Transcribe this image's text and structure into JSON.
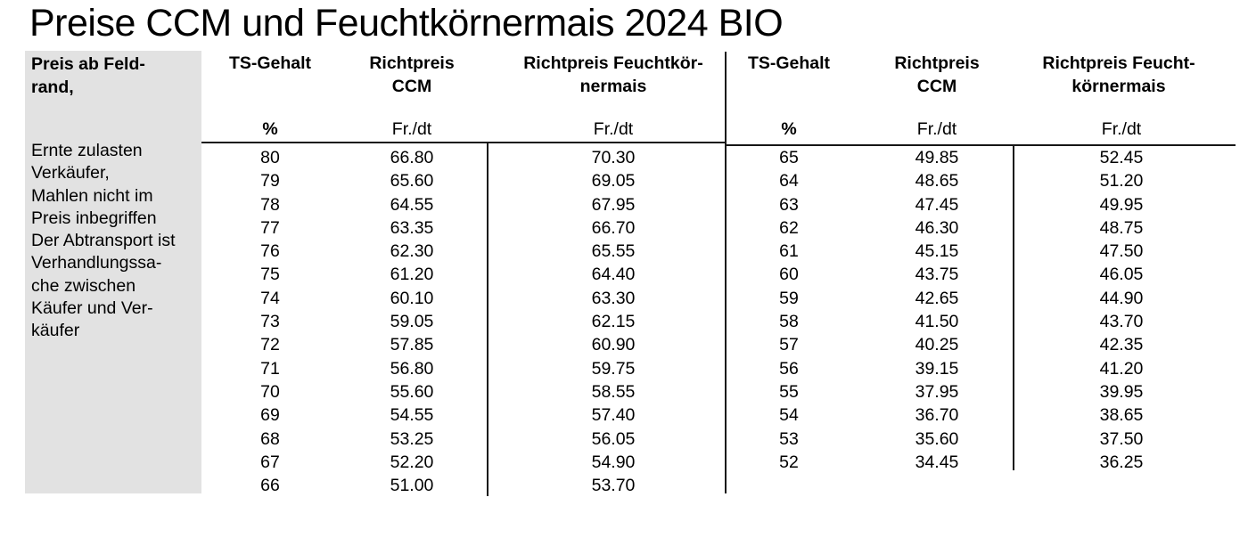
{
  "title": "Preise CCM und Feuchtkörnermais 2024 BIO",
  "sidebar": {
    "header": "Preis ab Feld-\nrand,",
    "body_lines": [
      "Ernte zulasten",
      "Verkäufer,",
      "Mahlen nicht im",
      "Preis inbegriffen",
      "Der Abtransport ist",
      "Verhandlungssa-",
      "che zwischen",
      "Käufer und Ver-",
      "käufer"
    ]
  },
  "table": {
    "left": {
      "headers": {
        "ts": "TS-Gehalt",
        "ccm": "Richtpreis\nCCM",
        "feucht": "Richtpreis Feuchtkör-\nnermais"
      },
      "units": {
        "ts": "%",
        "ccm": "Fr./dt",
        "feucht": "Fr./dt"
      },
      "rows": [
        [
          "80",
          "66.80",
          "70.30"
        ],
        [
          "79",
          "65.60",
          "69.05"
        ],
        [
          "78",
          "64.55",
          "67.95"
        ],
        [
          "77",
          "63.35",
          "66.70"
        ],
        [
          "76",
          "62.30",
          "65.55"
        ],
        [
          "75",
          "61.20",
          "64.40"
        ],
        [
          "74",
          "60.10",
          "63.30"
        ],
        [
          "73",
          "59.05",
          "62.15"
        ],
        [
          "72",
          "57.85",
          "60.90"
        ],
        [
          "71",
          "56.80",
          "59.75"
        ],
        [
          "70",
          "55.60",
          "58.55"
        ],
        [
          "69",
          "54.55",
          "57.40"
        ],
        [
          "68",
          "53.25",
          "56.05"
        ],
        [
          "67",
          "52.20",
          "54.90"
        ],
        [
          "66",
          "51.00",
          "53.70"
        ]
      ]
    },
    "right": {
      "headers": {
        "ts": "TS-Gehalt",
        "ccm": "Richtpreis\nCCM",
        "feucht": "Richtpreis Feucht-\nkörnermais"
      },
      "units": {
        "ts": "%",
        "ccm": "Fr./dt",
        "feucht": "Fr./dt"
      },
      "rows": [
        [
          "65",
          "49.85",
          "52.45"
        ],
        [
          "64",
          "48.65",
          "51.20"
        ],
        [
          "63",
          "47.45",
          "49.95"
        ],
        [
          "62",
          "46.30",
          "48.75"
        ],
        [
          "61",
          "45.15",
          "47.50"
        ],
        [
          "60",
          "43.75",
          "46.05"
        ],
        [
          "59",
          "42.65",
          "44.90"
        ],
        [
          "58",
          "41.50",
          "43.70"
        ],
        [
          "57",
          "40.25",
          "42.35"
        ],
        [
          "56",
          "39.15",
          "41.20"
        ],
        [
          "55",
          "37.95",
          "39.95"
        ],
        [
          "54",
          "36.70",
          "38.65"
        ],
        [
          "53",
          "35.60",
          "37.50"
        ],
        [
          "52",
          "34.45",
          "36.25"
        ]
      ]
    }
  },
  "colors": {
    "sidebar_bg": "#e2e2e2",
    "text": "#000000",
    "rule": "#161616"
  }
}
